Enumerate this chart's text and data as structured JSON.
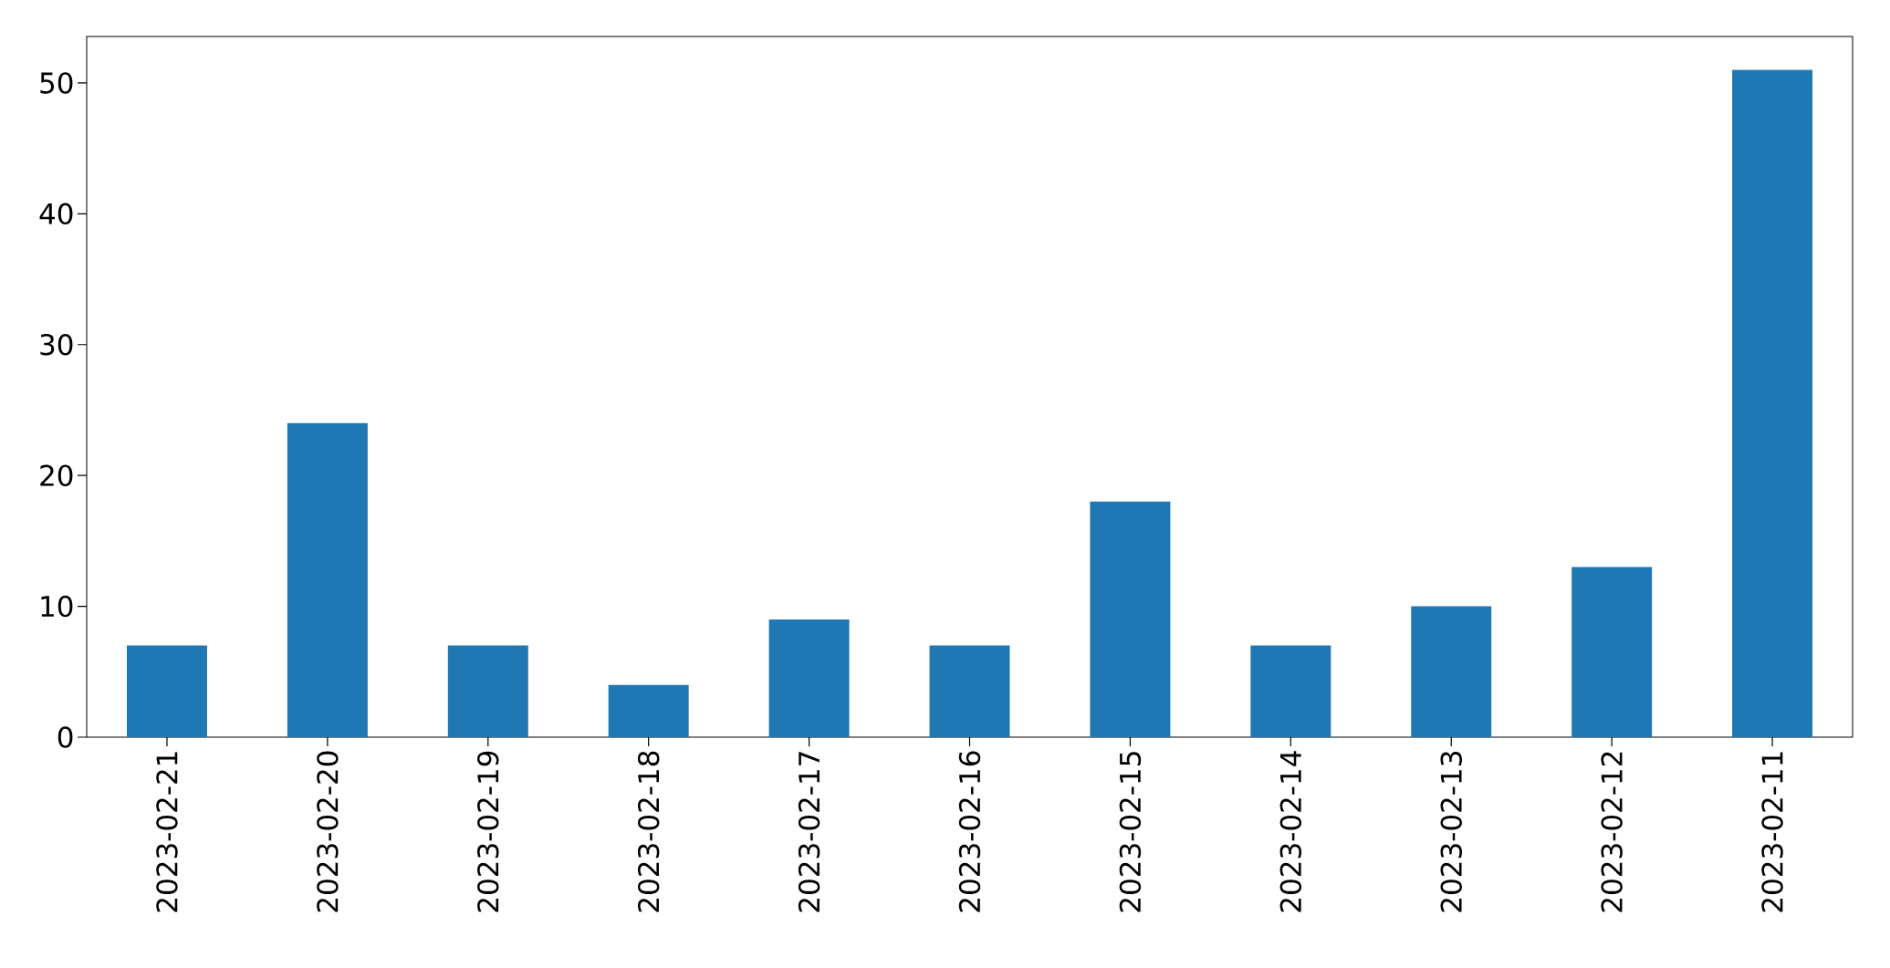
{
  "chart_data": {
    "type": "bar",
    "categories": [
      "2023-02-21",
      "2023-02-20",
      "2023-02-19",
      "2023-02-18",
      "2023-02-17",
      "2023-02-16",
      "2023-02-15",
      "2023-02-14",
      "2023-02-13",
      "2023-02-12",
      "2023-02-11"
    ],
    "values": [
      7,
      24,
      7,
      4,
      9,
      7,
      18,
      7,
      10,
      13,
      51
    ],
    "color": "#1f77b4",
    "ylim": [
      0,
      53.55
    ],
    "yticks": [
      0,
      10,
      20,
      30,
      40,
      50
    ]
  }
}
